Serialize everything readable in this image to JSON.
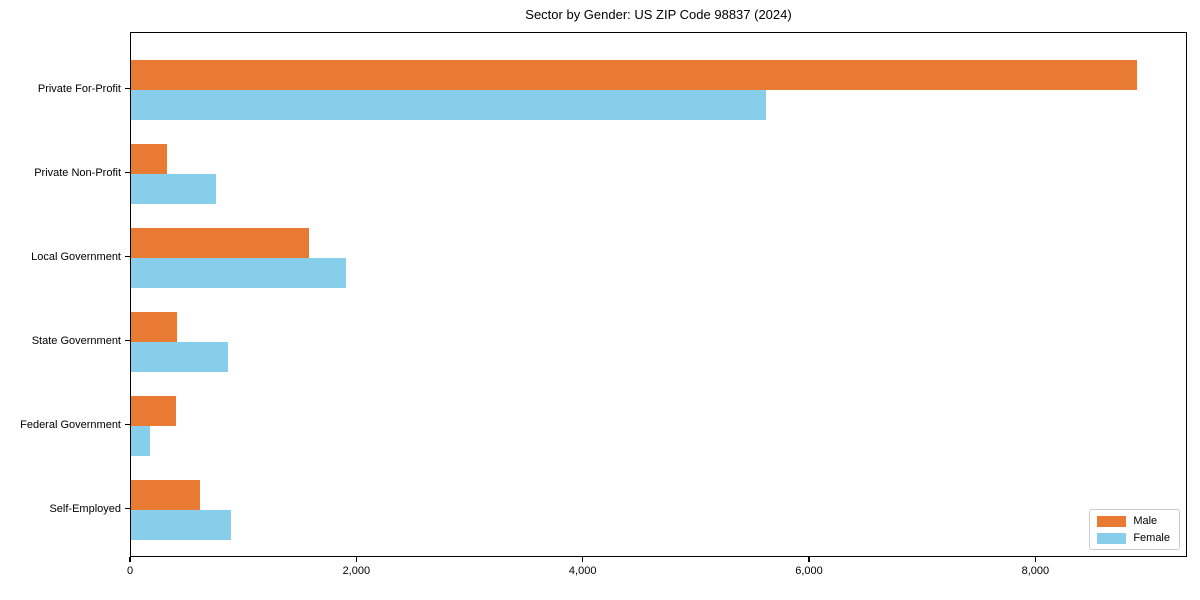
{
  "title": "Sector by Gender: US ZIP Code 98837 (2024)",
  "chart_data": {
    "type": "bar",
    "orientation": "horizontal",
    "title": "Sector by Gender: US ZIP Code 98837 (2024)",
    "categories": [
      "Private For-Profit",
      "Private Non-Profit",
      "Local Government",
      "State Government",
      "Federal Government",
      "Self-Employed"
    ],
    "series": [
      {
        "name": "Male",
        "color": "#E87A33",
        "values": [
          8890,
          320,
          1570,
          410,
          400,
          610
        ]
      },
      {
        "name": "Female",
        "color": "#87CEEB",
        "values": [
          5610,
          750,
          1900,
          860,
          170,
          880
        ]
      }
    ],
    "xlabel": "",
    "ylabel": "",
    "xlim": [
      0,
      9340
    ],
    "xticks": [
      0,
      2000,
      4000,
      6000,
      8000
    ],
    "xtick_labels": [
      "0",
      "2,000",
      "4,000",
      "6,000",
      "8,000"
    ],
    "grid": false,
    "legend_position": "lower right"
  }
}
